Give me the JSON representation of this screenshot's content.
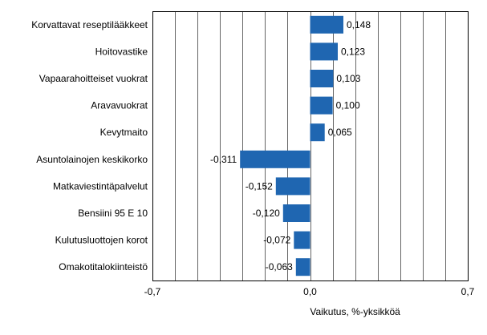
{
  "chart_data": {
    "type": "bar",
    "orientation": "horizontal",
    "categories": [
      "Korvattavat reseptilääkkeet",
      "Hoitovastike",
      "Vapaarahoitteiset vuokrat",
      "Aravavuokrat",
      "Kevytmaito",
      "Asuntolainojen keskikorko",
      "Matkaviestintäpalvelut",
      "Bensiini 95 E 10",
      "Kulutusluottojen korot",
      "Omakotitalokiinteistö"
    ],
    "values": [
      0.148,
      0.123,
      0.103,
      0.1,
      0.065,
      -0.311,
      -0.152,
      -0.12,
      -0.072,
      -0.063
    ],
    "value_labels": [
      "0,148",
      "0,123",
      "0,103",
      "0,100",
      "0,065",
      "-0,311",
      "-0,152",
      "-0,120",
      "-0,072",
      "-0,063"
    ],
    "xlim": [
      -0.7,
      0.7
    ],
    "x_ticks": [
      {
        "value": -0.7,
        "label": "-0,7"
      },
      {
        "value": 0.0,
        "label": "0,0"
      },
      {
        "value": 0.7,
        "label": "0,7"
      }
    ],
    "gridline_step": 0.1,
    "grid": true,
    "xlabel": "Vaikutus, %-yksikköä",
    "ylabel": "",
    "title": "",
    "bar_color": "#1f66b1",
    "grid_color": "#000000",
    "legend": "none"
  }
}
